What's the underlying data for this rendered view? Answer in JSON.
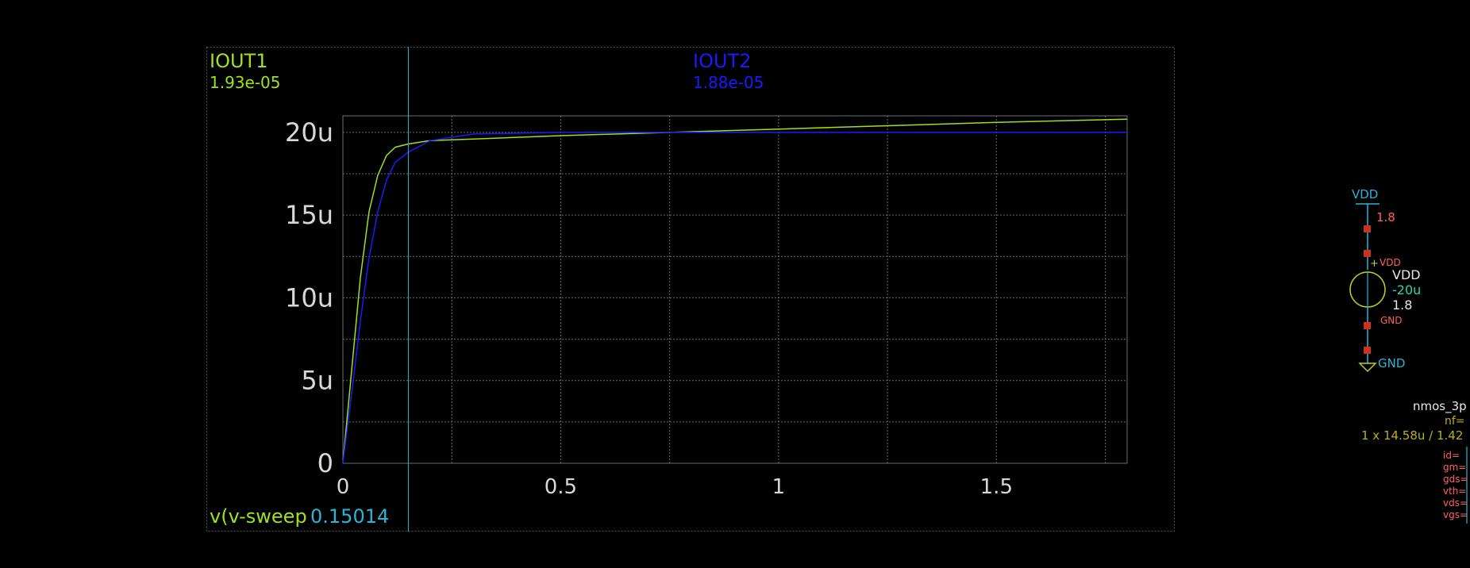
{
  "colors": {
    "background": "#000000",
    "frame": "#5a5a5a",
    "grid": "#6a6a6a",
    "axis_text": "#d8d8d8",
    "series1": "#9ee21a",
    "series2": "#1a1aff",
    "cursor": "#27b6d6",
    "net_label": "#27b6d6",
    "pin_red": "#d03020",
    "param_red": "#ff6060",
    "source_green": "#b8d020",
    "white_text": "#e8e8e8"
  },
  "graph": {
    "trace1": {
      "name": "IOUT1",
      "value": "1.93e-05"
    },
    "trace2": {
      "name": "IOUT2",
      "value": "1.88e-05"
    },
    "x_label": "v(v-sweep)",
    "cursor_value": "0.15014"
  },
  "chart_data": {
    "type": "line",
    "xlim": [
      0,
      1.8
    ],
    "ylim": [
      0,
      2.1e-05
    ],
    "x_ticks": [
      {
        "value": 0,
        "label": "0"
      },
      {
        "value": 0.5,
        "label": "0.5"
      },
      {
        "value": 1,
        "label": "1"
      },
      {
        "value": 1.5,
        "label": "1.5"
      }
    ],
    "y_ticks": [
      {
        "value": 0,
        "label": "0"
      },
      {
        "value": 5e-06,
        "label": "5u"
      },
      {
        "value": 1e-05,
        "label": "10u"
      },
      {
        "value": 1.5e-05,
        "label": "15u"
      },
      {
        "value": 2e-05,
        "label": "20u"
      }
    ],
    "x_grid": [
      0,
      0.25,
      0.5,
      0.75,
      1,
      1.25,
      1.5,
      1.75,
      1.8
    ],
    "y_grid": [
      0,
      2.5e-06,
      5e-06,
      7.5e-06,
      1e-05,
      1.25e-05,
      1.5e-05,
      1.75e-05,
      2e-05,
      2.1e-05
    ],
    "cursor_x": 0.15014,
    "series": [
      {
        "name": "IOUT1",
        "color": "#9ee21a",
        "x": [
          0,
          0.02,
          0.04,
          0.06,
          0.08,
          0.1,
          0.12,
          0.15,
          0.2,
          0.3,
          0.5,
          0.75,
          1.0,
          1.25,
          1.5,
          1.8
        ],
        "y": [
          0,
          5.6e-06,
          1.12e-05,
          1.52e-05,
          1.74e-05,
          1.86e-05,
          1.91e-05,
          1.93e-05,
          1.95e-05,
          1.96e-05,
          1.98e-05,
          2e-05,
          2.02e-05,
          2.04e-05,
          2.06e-05,
          2.08e-05
        ]
      },
      {
        "name": "IOUT2",
        "color": "#1a1aff",
        "x": [
          0,
          0.02,
          0.04,
          0.06,
          0.08,
          0.1,
          0.12,
          0.15,
          0.2,
          0.3,
          0.5,
          0.75,
          1.0,
          1.5,
          1.8
        ],
        "y": [
          0,
          4.2e-06,
          8.6e-06,
          1.24e-05,
          1.52e-05,
          1.71e-05,
          1.82e-05,
          1.88e-05,
          1.95e-05,
          1.99e-05,
          2e-05,
          2e-05,
          2e-05,
          2e-05,
          2e-05
        ]
      }
    ]
  },
  "schematic": {
    "vdd_net": "VDD",
    "vdd_value": "1.8",
    "pin_plus": "+",
    "pin_vdd": "VDD",
    "source_name": "VDD",
    "source_current": "-20u",
    "source_voltage": "1.8",
    "pin_gnd": "GND",
    "gnd_net": "GND",
    "device_name": "nmos_3p",
    "device_nf": "nf=",
    "device_size": "1 x 14.58u / 1.42",
    "params": [
      "id=",
      "gm=",
      "gds=",
      "vth=",
      "vds=",
      "vgs="
    ]
  }
}
